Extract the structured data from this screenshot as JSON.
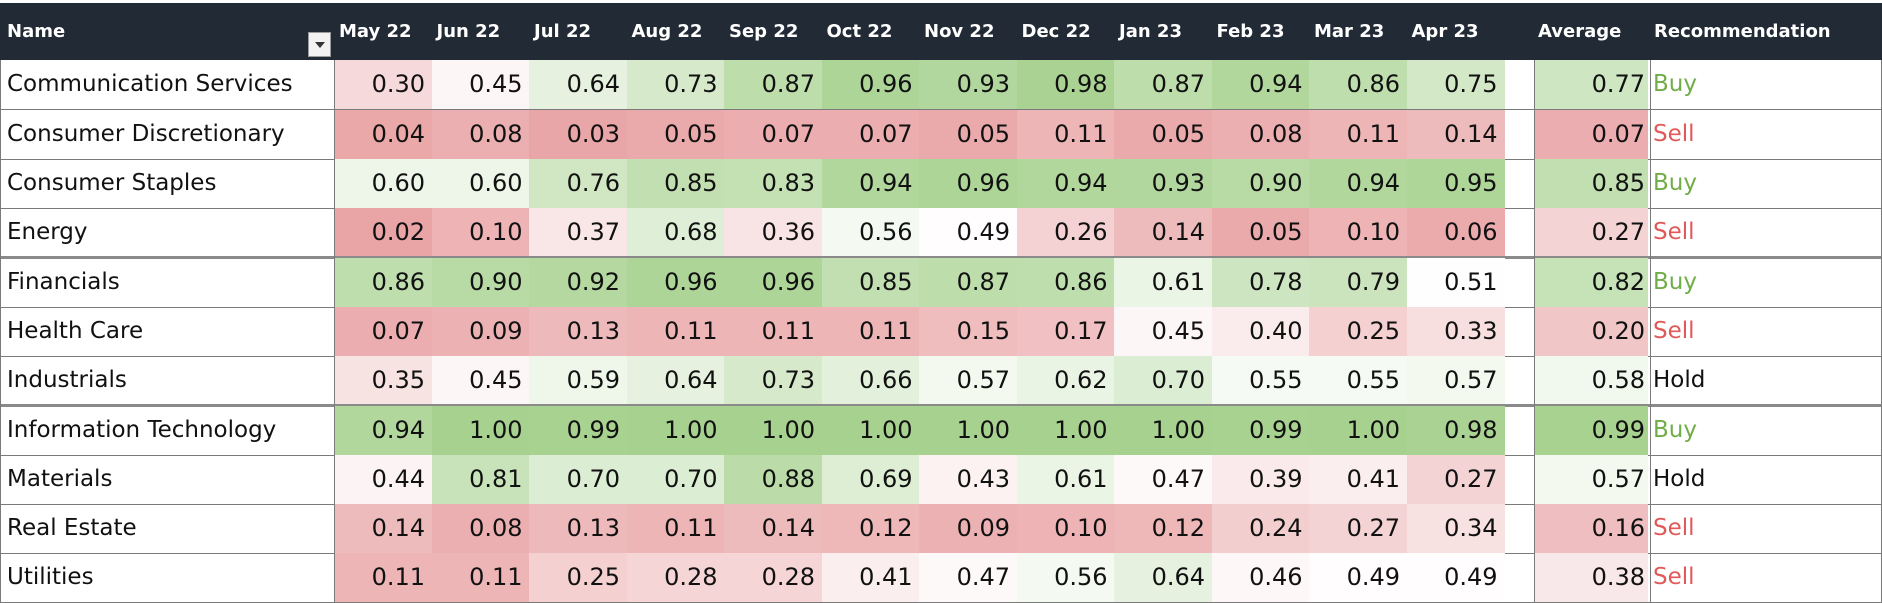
{
  "sheet": {
    "headers": {
      "name": "Name",
      "months": [
        "May 22",
        "Jun 22",
        "Jul 22",
        "Aug 22",
        "Sep 22",
        "Oct 22",
        "Nov 22",
        "Dec 22",
        "Jan 23",
        "Feb 23",
        "Mar 23",
        "Apr 23"
      ],
      "average": "Average",
      "recommendation": "Recommendation"
    },
    "colors": {
      "header_bg": "#222a35",
      "header_text": "#ffffff",
      "low": "#e8a0a2",
      "mid": "#ffffff",
      "high": "#a6d18e",
      "buy": "#70ad47",
      "sell": "#e05a5a",
      "hold": "#111111"
    },
    "rows": [
      {
        "name": "Communication Services",
        "values": [
          "0.30",
          "0.45",
          "0.64",
          "0.73",
          "0.87",
          "0.96",
          "0.93",
          "0.98",
          "0.87",
          "0.94",
          "0.86",
          "0.75"
        ],
        "average": "0.77",
        "recommendation": "Buy"
      },
      {
        "name": "Consumer Discretionary",
        "values": [
          "0.04",
          "0.08",
          "0.03",
          "0.05",
          "0.07",
          "0.07",
          "0.05",
          "0.11",
          "0.05",
          "0.08",
          "0.11",
          "0.14"
        ],
        "average": "0.07",
        "recommendation": "Sell"
      },
      {
        "name": "Consumer Staples",
        "values": [
          "0.60",
          "0.60",
          "0.76",
          "0.85",
          "0.83",
          "0.94",
          "0.96",
          "0.94",
          "0.93",
          "0.90",
          "0.94",
          "0.95"
        ],
        "average": "0.85",
        "recommendation": "Buy"
      },
      {
        "name": "Energy",
        "values": [
          "0.02",
          "0.10",
          "0.37",
          "0.68",
          "0.36",
          "0.56",
          "0.49",
          "0.26",
          "0.14",
          "0.05",
          "0.10",
          "0.06"
        ],
        "average": "0.27",
        "recommendation": "Sell"
      },
      {
        "name": "Financials",
        "values": [
          "0.86",
          "0.90",
          "0.92",
          "0.96",
          "0.96",
          "0.85",
          "0.87",
          "0.86",
          "0.61",
          "0.78",
          "0.79",
          "0.51"
        ],
        "average": "0.82",
        "recommendation": "Buy"
      },
      {
        "name": "Health Care",
        "values": [
          "0.07",
          "0.09",
          "0.13",
          "0.11",
          "0.11",
          "0.11",
          "0.15",
          "0.17",
          "0.45",
          "0.40",
          "0.25",
          "0.33"
        ],
        "average": "0.20",
        "recommendation": "Sell"
      },
      {
        "name": "Industrials",
        "values": [
          "0.35",
          "0.45",
          "0.59",
          "0.64",
          "0.73",
          "0.66",
          "0.57",
          "0.62",
          "0.70",
          "0.55",
          "0.55",
          "0.57"
        ],
        "average": "0.58",
        "recommendation": "Hold"
      },
      {
        "name": "Information Technology",
        "values": [
          "0.94",
          "1.00",
          "0.99",
          "1.00",
          "1.00",
          "1.00",
          "1.00",
          "1.00",
          "1.00",
          "0.99",
          "1.00",
          "0.98"
        ],
        "average": "0.99",
        "recommendation": "Buy"
      },
      {
        "name": "Materials",
        "values": [
          "0.44",
          "0.81",
          "0.70",
          "0.70",
          "0.88",
          "0.69",
          "0.43",
          "0.61",
          "0.47",
          "0.39",
          "0.41",
          "0.27"
        ],
        "average": "0.57",
        "recommendation": "Hold"
      },
      {
        "name": "Real Estate",
        "values": [
          "0.14",
          "0.08",
          "0.13",
          "0.11",
          "0.14",
          "0.12",
          "0.09",
          "0.10",
          "0.12",
          "0.24",
          "0.27",
          "0.34"
        ],
        "average": "0.16",
        "recommendation": "Sell"
      },
      {
        "name": "Utilities",
        "values": [
          "0.11",
          "0.11",
          "0.25",
          "0.28",
          "0.28",
          "0.41",
          "0.47",
          "0.56",
          "0.64",
          "0.46",
          "0.49",
          "0.49"
        ],
        "average": "0.38",
        "recommendation": "Sell"
      }
    ]
  }
}
